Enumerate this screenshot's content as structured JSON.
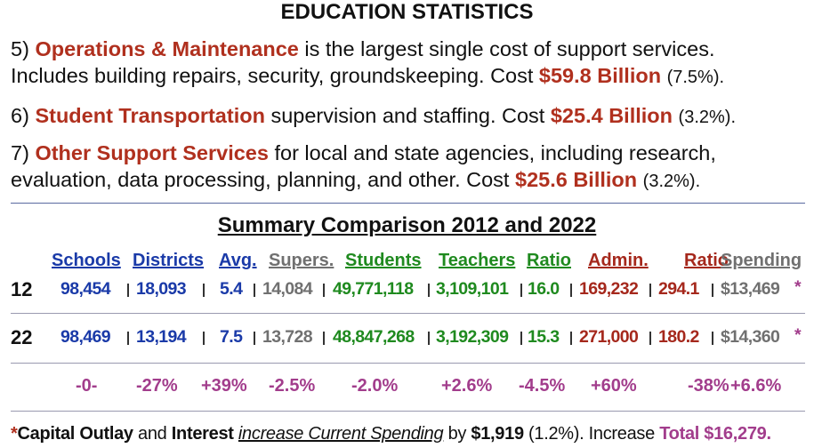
{
  "title": "EDUCATION STATISTICS",
  "items": [
    {
      "number": "5)",
      "highlight": "Operations & Maintenance",
      "text": "is the largest single cost of support services.",
      "text_2": "Includes building repairs, security, groundskeeping. Cost",
      "cost": "$59.8 Billion",
      "share": "(7.5%)."
    },
    {
      "number": "6)",
      "highlight": "Student Transportation",
      "text": "supervision and staffing. Cost",
      "cost": "$25.4 Billion",
      "share": "(3.2%)."
    },
    {
      "number": "7)",
      "highlight": "Other Support Services",
      "text": "for local and state agencies, including research,",
      "text_2": "evaluation, data processing, planning, and other. Cost",
      "cost": "$25.6 Billion",
      "share": "(3.2%)."
    }
  ],
  "summary": {
    "title": "Summary Comparison 2012 and 2022",
    "headers": [
      "Schools",
      "Districts",
      "Avg.",
      "Supers.",
      "Students",
      "Teachers",
      "Ratio",
      "Admin.",
      "Ratio",
      "Spending"
    ],
    "rows": [
      {
        "label": "12",
        "cells": [
          "98,454",
          "18,093",
          "5.4",
          "14,084",
          "49,771,118",
          "3,109,101",
          "16.0",
          "169,232",
          "294.1",
          "$13,469"
        ],
        "note": "*"
      },
      {
        "label": "22",
        "cells": [
          "98,469",
          "13,194",
          "7.5",
          "13,728",
          "48,847,268",
          "3,192,309",
          "15.3",
          "271,000",
          "180.2",
          "$14,360"
        ],
        "note": "*"
      }
    ],
    "changes": [
      "-0-",
      "-27%",
      "+39%",
      "-2.5%",
      "-2.0%",
      "+2.6%",
      "-4.5%",
      "+60%",
      "-38%",
      "+6.6%"
    ]
  },
  "footnote": {
    "star": "*",
    "term_1": "Capital Outlay",
    "text_1": "and",
    "term_2": "Interest",
    "emphasis": "increase Current Spending",
    "text_2": "by",
    "amount": "$1,919",
    "text_3": "(1.2%). Increase",
    "total": "Total $16,279."
  }
}
